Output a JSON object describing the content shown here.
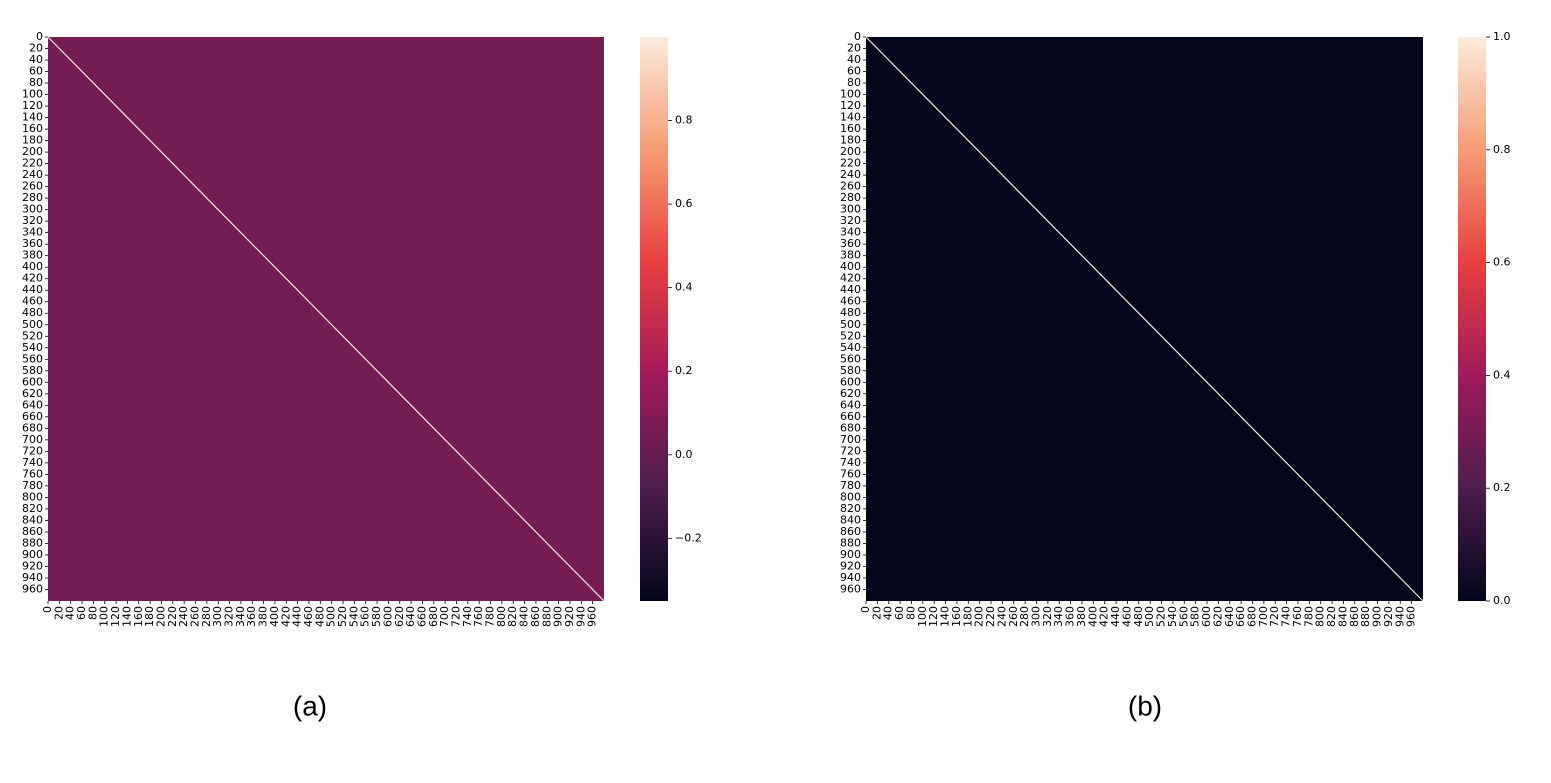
{
  "chart_data": [
    {
      "type": "heatmap",
      "caption": "(a)",
      "values": {
        "off_diagonal": 0.05,
        "diagonal": 1.0
      },
      "xlim": [
        0,
        980
      ],
      "ylim": [
        0,
        980
      ],
      "xticks": [
        0,
        20,
        40,
        60,
        80,
        100,
        120,
        140,
        160,
        180,
        200,
        220,
        240,
        260,
        280,
        300,
        320,
        340,
        360,
        380,
        400,
        420,
        440,
        460,
        480,
        500,
        520,
        540,
        560,
        580,
        600,
        620,
        640,
        660,
        680,
        700,
        720,
        740,
        760,
        780,
        800,
        820,
        840,
        860,
        880,
        900,
        920,
        940,
        960
      ],
      "yticks": [
        0,
        20,
        40,
        60,
        80,
        100,
        120,
        140,
        160,
        180,
        200,
        220,
        240,
        260,
        280,
        300,
        320,
        340,
        360,
        380,
        400,
        420,
        440,
        460,
        480,
        500,
        520,
        540,
        560,
        580,
        600,
        620,
        640,
        660,
        680,
        700,
        720,
        740,
        760,
        780,
        800,
        820,
        840,
        860,
        880,
        900,
        920,
        940,
        960
      ],
      "zlim": [
        -0.35,
        1.0
      ],
      "zticks": [
        {
          "value": -0.2,
          "label": "−0.2"
        },
        {
          "value": 0.0,
          "label": "0.0"
        },
        0.2,
        0.4,
        0.6,
        0.8
      ],
      "colormap": [
        "#03051a",
        "#4c1d4b",
        "#a11a5b",
        "#e83f3f",
        "#f69c73",
        "#faebdd"
      ]
    },
    {
      "type": "heatmap",
      "caption": "(b)",
      "values": {
        "off_diagonal": 0.0,
        "diagonal": 1.0
      },
      "xlim": [
        0,
        980
      ],
      "ylim": [
        0,
        980
      ],
      "xticks": [
        0,
        20,
        40,
        60,
        80,
        100,
        120,
        140,
        160,
        180,
        200,
        220,
        240,
        260,
        280,
        300,
        320,
        340,
        360,
        380,
        400,
        420,
        440,
        460,
        480,
        500,
        520,
        540,
        560,
        580,
        600,
        620,
        640,
        660,
        680,
        700,
        720,
        740,
        760,
        780,
        800,
        820,
        840,
        860,
        880,
        900,
        920,
        940,
        960
      ],
      "yticks": [
        0,
        20,
        40,
        60,
        80,
        100,
        120,
        140,
        160,
        180,
        200,
        220,
        240,
        260,
        280,
        300,
        320,
        340,
        360,
        380,
        400,
        420,
        440,
        460,
        480,
        500,
        520,
        540,
        560,
        580,
        600,
        620,
        640,
        660,
        680,
        700,
        720,
        740,
        760,
        780,
        800,
        820,
        840,
        860,
        880,
        900,
        920,
        940,
        960
      ],
      "zlim": [
        0.0,
        1.0
      ],
      "zticks": [
        {
          "value": 0.0,
          "label": "0.0"
        },
        0.2,
        0.4,
        0.6,
        0.8,
        {
          "value": 1.0,
          "label": "1.0"
        }
      ],
      "colormap": [
        "#03051a",
        "#4c1d4b",
        "#a11a5b",
        "#e83f3f",
        "#f69c73",
        "#faebdd"
      ]
    }
  ]
}
